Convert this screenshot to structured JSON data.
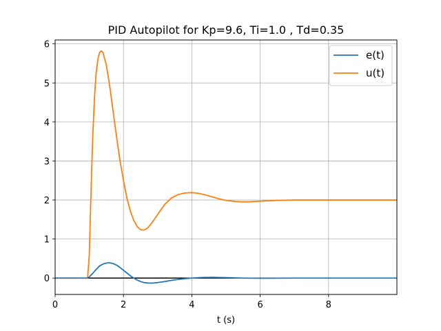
{
  "chart_data": {
    "type": "line",
    "title": "PID Autopilot for Kp=9.6, Ti=1.0 , Td=0.35",
    "xlabel": "t (s)",
    "ylabel": "",
    "xlim": [
      0,
      10
    ],
    "ylim": [
      -0.42,
      6.1
    ],
    "xticks": [
      0,
      2,
      4,
      6,
      8
    ],
    "yticks": [
      0,
      1,
      2,
      3,
      4,
      5,
      6
    ],
    "grid": true,
    "legend_position": "top-right",
    "reference_line": {
      "y": 0,
      "color": "#000000"
    },
    "series": [
      {
        "name": "e(t)",
        "color": "#1f77b4",
        "x": [
          0,
          0.5,
          0.95,
          1.0,
          1.1,
          1.2,
          1.3,
          1.4,
          1.5,
          1.6,
          1.7,
          1.8,
          1.9,
          2.0,
          2.1,
          2.2,
          2.3,
          2.4,
          2.5,
          2.6,
          2.7,
          2.8,
          2.9,
          3.0,
          3.2,
          3.4,
          3.6,
          3.8,
          4.0,
          4.3,
          4.6,
          5.0,
          5.5,
          6.0,
          7.0,
          8.0,
          9.0,
          10.0
        ],
        "y": [
          0,
          0,
          0,
          0.03,
          0.12,
          0.22,
          0.31,
          0.36,
          0.385,
          0.39,
          0.37,
          0.33,
          0.27,
          0.2,
          0.13,
          0.06,
          0.0,
          -0.05,
          -0.09,
          -0.115,
          -0.125,
          -0.13,
          -0.125,
          -0.115,
          -0.09,
          -0.06,
          -0.035,
          -0.015,
          0.0,
          0.015,
          0.02,
          0.01,
          0.0,
          -0.005,
          0.0,
          0.0,
          0.0,
          0.0
        ]
      },
      {
        "name": "u(t)",
        "color": "#ff7f0e",
        "x": [
          0,
          0.5,
          0.95,
          1.0,
          1.05,
          1.1,
          1.15,
          1.2,
          1.25,
          1.3,
          1.35,
          1.4,
          1.5,
          1.6,
          1.7,
          1.8,
          1.9,
          2.0,
          2.1,
          2.2,
          2.3,
          2.4,
          2.5,
          2.6,
          2.7,
          2.8,
          2.9,
          3.0,
          3.2,
          3.4,
          3.6,
          3.8,
          4.0,
          4.2,
          4.4,
          4.6,
          4.8,
          5.0,
          5.3,
          5.6,
          6.0,
          6.5,
          7.0,
          7.5,
          8.0,
          9.0,
          10.0
        ],
        "y": [
          0,
          0,
          0,
          0.6,
          2.2,
          3.6,
          4.6,
          5.25,
          5.6,
          5.78,
          5.82,
          5.78,
          5.45,
          4.9,
          4.25,
          3.6,
          3.0,
          2.5,
          2.05,
          1.72,
          1.48,
          1.32,
          1.24,
          1.23,
          1.28,
          1.38,
          1.5,
          1.63,
          1.88,
          2.05,
          2.14,
          2.18,
          2.19,
          2.17,
          2.13,
          2.08,
          2.03,
          1.99,
          1.96,
          1.95,
          1.97,
          1.99,
          2.0,
          2.0,
          2.0,
          2.0,
          2.0
        ]
      }
    ]
  }
}
